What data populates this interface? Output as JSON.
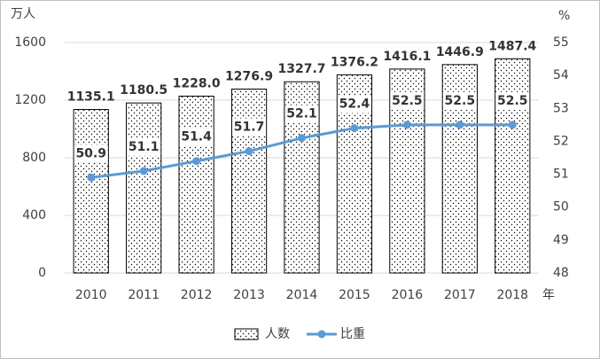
{
  "chart_data": {
    "type": "combo",
    "y_label": "万人",
    "y2_label": "%",
    "x_label": "年",
    "categories": [
      "2010",
      "2011",
      "2012",
      "2013",
      "2014",
      "2015",
      "2016",
      "2017",
      "2018"
    ],
    "series": [
      {
        "name": "人数",
        "type": "bar",
        "color": "#000000",
        "values": [
          1135.1,
          1180.5,
          1228.0,
          1276.9,
          1327.7,
          1376.2,
          1416.1,
          1446.9,
          1487.4
        ],
        "value_labels": [
          "1135.1",
          "1180.5",
          "1228.0",
          "1276.9",
          "1327.7",
          "1376.2",
          "1416.1",
          "1446.9",
          "1487.4"
        ]
      },
      {
        "name": "比重",
        "type": "line",
        "color": "#5b9bd5",
        "axis": "y2",
        "values": [
          50.9,
          51.1,
          51.4,
          51.7,
          52.1,
          52.4,
          52.5,
          52.5,
          52.5
        ]
      }
    ],
    "ylim": [
      0,
      1600
    ],
    "yticks": [
      0,
      400,
      800,
      1200,
      1600
    ],
    "y2lim": [
      48,
      55
    ],
    "y2ticks": [
      48,
      49,
      50,
      51,
      52,
      53,
      54,
      55
    ],
    "grid": true,
    "legend": "bottom"
  }
}
